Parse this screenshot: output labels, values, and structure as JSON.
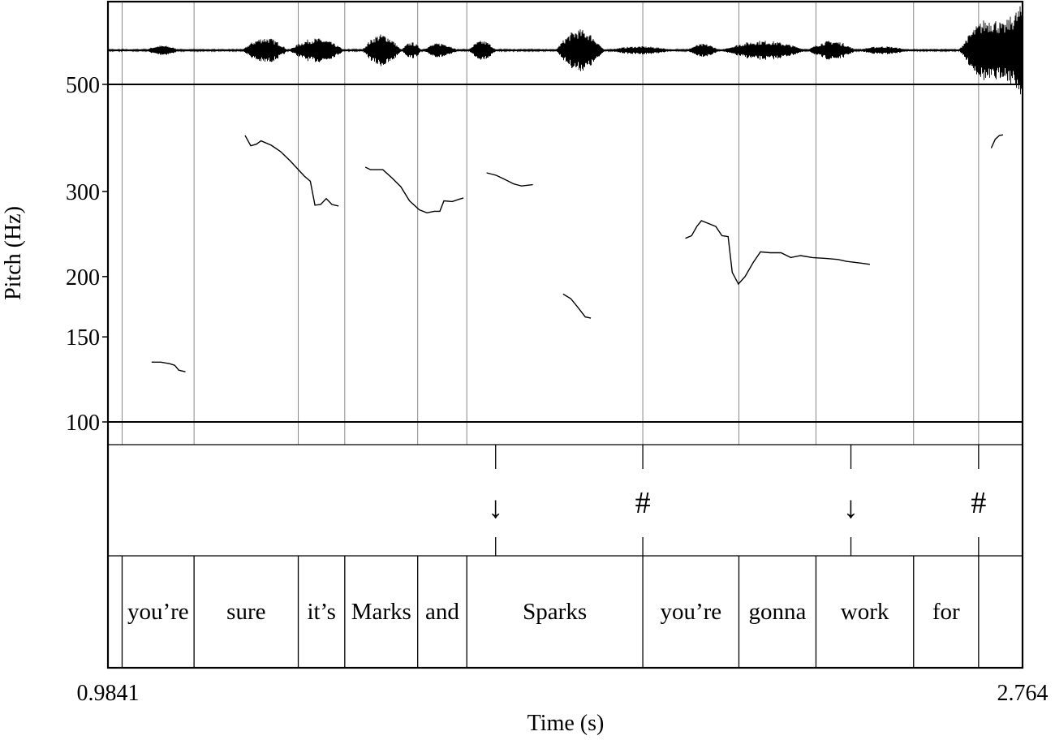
{
  "chart_data": {
    "type": "line",
    "ylabel": "Pitch (Hz)",
    "xlabel": "Time (s)",
    "xlim": [
      0.9841,
      2.764
    ],
    "x_tick_labels": [
      "0.9841",
      "2.764"
    ],
    "ylim": [
      90,
      700
    ],
    "y_scale": "log",
    "y_ticks": [
      100,
      150,
      200,
      300,
      500
    ],
    "y_tick_labels": [
      "100",
      "150",
      "200",
      "300",
      "500"
    ],
    "reference_lines": [
      100,
      500
    ],
    "pitch_track": [
      [
        [
          1.069,
          133
        ],
        [
          1.087,
          133
        ],
        [
          1.104,
          132
        ],
        [
          1.114,
          131
        ],
        [
          1.122,
          128
        ],
        [
          1.135,
          127
        ]
      ],
      [
        [
          1.251,
          392
        ],
        [
          1.262,
          373
        ],
        [
          1.273,
          376
        ],
        [
          1.282,
          382
        ],
        [
          1.302,
          374
        ],
        [
          1.32,
          363
        ],
        [
          1.339,
          347
        ],
        [
          1.366,
          323
        ],
        [
          1.378,
          315
        ],
        [
          1.387,
          281
        ],
        [
          1.398,
          282
        ],
        [
          1.409,
          290
        ],
        [
          1.42,
          282
        ],
        [
          1.433,
          280
        ]
      ],
      [
        [
          1.485,
          337
        ],
        [
          1.495,
          333
        ],
        [
          1.519,
          333
        ],
        [
          1.537,
          320
        ],
        [
          1.554,
          307
        ],
        [
          1.571,
          287
        ],
        [
          1.59,
          275
        ],
        [
          1.605,
          271
        ],
        [
          1.619,
          273
        ],
        [
          1.63,
          273
        ],
        [
          1.638,
          287
        ],
        [
          1.654,
          286
        ],
        [
          1.667,
          289
        ],
        [
          1.676,
          291
        ]
      ],
      [
        [
          1.721,
          328
        ],
        [
          1.74,
          324
        ],
        [
          1.756,
          318
        ],
        [
          1.774,
          311
        ],
        [
          1.789,
          308
        ],
        [
          1.811,
          310
        ]
      ],
      [
        [
          1.87,
          184
        ],
        [
          1.885,
          180
        ],
        [
          1.898,
          173
        ],
        [
          1.913,
          165
        ],
        [
          1.924,
          164
        ]
      ],
      [
        [
          2.108,
          240
        ],
        [
          2.12,
          243
        ],
        [
          2.13,
          254
        ],
        [
          2.139,
          261
        ],
        [
          2.151,
          258
        ],
        [
          2.167,
          254
        ],
        [
          2.179,
          243
        ],
        [
          2.191,
          242
        ],
        [
          2.199,
          204
        ],
        [
          2.211,
          193
        ],
        [
          2.224,
          200
        ],
        [
          2.24,
          214
        ],
        [
          2.254,
          225
        ],
        [
          2.273,
          224
        ],
        [
          2.294,
          224
        ],
        [
          2.313,
          219
        ],
        [
          2.332,
          221
        ],
        [
          2.355,
          219
        ],
        [
          2.383,
          218
        ],
        [
          2.405,
          217
        ],
        [
          2.421,
          215
        ],
        [
          2.453,
          213
        ],
        [
          2.467,
          212
        ]
      ],
      [
        [
          2.703,
          369
        ],
        [
          2.711,
          385
        ],
        [
          2.719,
          392
        ],
        [
          2.726,
          393
        ]
      ]
    ]
  },
  "boundaries": [
    1.0117,
    1.1517,
    1.3545,
    1.445,
    1.5869,
    1.6825,
    2.025,
    2.212,
    2.362,
    2.552,
    2.6785
  ],
  "tone_tier": [
    {
      "t": 1.7386,
      "label": "↓"
    },
    {
      "t": 2.025,
      "label": "#"
    },
    {
      "t": 2.43,
      "label": "↓"
    },
    {
      "t": 2.6785,
      "label": "#"
    }
  ],
  "words": [
    "you’re",
    "sure",
    "it’s",
    "Marks",
    "and",
    "Sparks",
    "you’re",
    "gonna",
    "work",
    "for"
  ]
}
